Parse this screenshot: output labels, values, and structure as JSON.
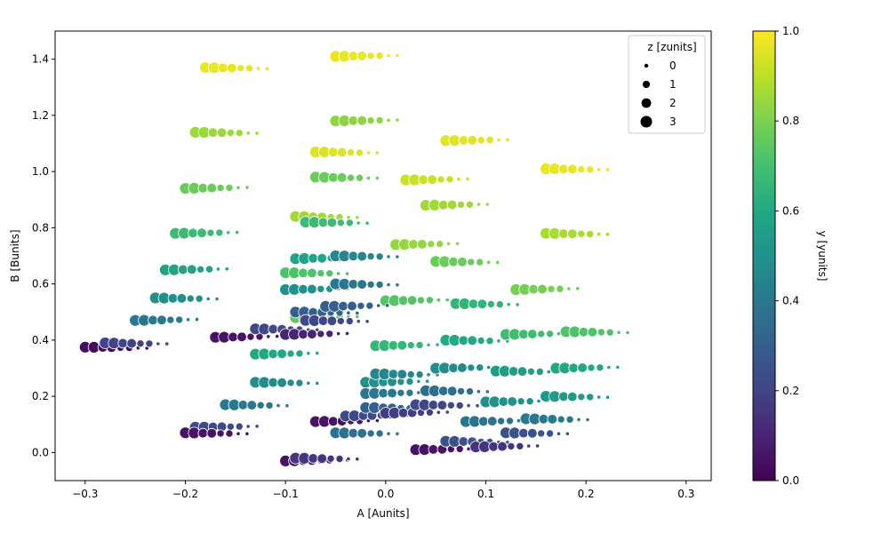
{
  "chart_data": {
    "type": "scatter",
    "xlabel": "A [Aunits]",
    "ylabel": "B [Bunits]",
    "colorbar_label": "y [yunits]",
    "legend_title": "z [zunits]",
    "legend_placement": "top-right",
    "xlim": [
      -0.33,
      0.325
    ],
    "ylim": [
      -0.1,
      1.5
    ],
    "x_ticks": [
      -0.3,
      -0.2,
      -0.1,
      0.0,
      0.1,
      0.2,
      0.3
    ],
    "x_tick_labels": [
      "−0.3",
      "−0.2",
      "−0.1",
      "0.0",
      "0.1",
      "0.2",
      "0.3"
    ],
    "y_ticks": [
      0.0,
      0.2,
      0.4,
      0.6,
      0.8,
      1.0,
      1.2,
      1.4
    ],
    "y_tick_labels": [
      "0.0",
      "0.2",
      "0.4",
      "0.6",
      "0.8",
      "1.0",
      "1.2",
      "1.4"
    ],
    "colorbar_range": [
      0.0,
      1.0
    ],
    "colorbar_ticks": [
      0.0,
      0.2,
      0.4,
      0.6,
      0.8,
      1.0
    ],
    "colorbar_tick_labels": [
      "0.0",
      "0.2",
      "0.4",
      "0.6",
      "0.8",
      "1.0"
    ],
    "colormap": "viridis",
    "grid": false,
    "legend_entries": [
      {
        "label": "0",
        "z": 0
      },
      {
        "label": "1",
        "z": 1
      },
      {
        "label": "2",
        "z": 2
      },
      {
        "label": "3",
        "z": 3
      }
    ],
    "clusters": [
      {
        "x": -0.3,
        "B": 0.375,
        "y": 0.03
      },
      {
        "x": -0.17,
        "B": 0.41,
        "y": 0.05
      },
      {
        "x": -0.18,
        "B": 1.37,
        "y": 0.97
      },
      {
        "x": -0.05,
        "B": 1.41,
        "y": 0.97
      },
      {
        "x": -0.19,
        "B": 1.14,
        "y": 0.85
      },
      {
        "x": -0.05,
        "B": 1.18,
        "y": 0.83
      },
      {
        "x": -0.07,
        "B": 1.07,
        "y": 0.95
      },
      {
        "x": 0.06,
        "B": 1.11,
        "y": 0.96
      },
      {
        "x": 0.16,
        "B": 1.01,
        "y": 0.97
      },
      {
        "x": -0.2,
        "B": 0.94,
        "y": 0.77
      },
      {
        "x": -0.07,
        "B": 0.98,
        "y": 0.77
      },
      {
        "x": 0.02,
        "B": 0.97,
        "y": 0.92
      },
      {
        "x": -0.09,
        "B": 0.84,
        "y": 0.86
      },
      {
        "x": 0.04,
        "B": 0.88,
        "y": 0.86
      },
      {
        "x": 0.16,
        "B": 0.78,
        "y": 0.87
      },
      {
        "x": -0.21,
        "B": 0.78,
        "y": 0.68
      },
      {
        "x": -0.08,
        "B": 0.82,
        "y": 0.68
      },
      {
        "x": 0.01,
        "B": 0.74,
        "y": 0.84
      },
      {
        "x": 0.05,
        "B": 0.68,
        "y": 0.77
      },
      {
        "x": -0.22,
        "B": 0.65,
        "y": 0.58
      },
      {
        "x": -0.1,
        "B": 0.64,
        "y": 0.72
      },
      {
        "x": -0.09,
        "B": 0.69,
        "y": 0.58
      },
      {
        "x": -0.05,
        "B": 0.7,
        "y": 0.45
      },
      {
        "x": 0.13,
        "B": 0.58,
        "y": 0.79
      },
      {
        "x": -0.23,
        "B": 0.55,
        "y": 0.49
      },
      {
        "x": -0.1,
        "B": 0.58,
        "y": 0.5
      },
      {
        "x": -0.05,
        "B": 0.6,
        "y": 0.4
      },
      {
        "x": -0.09,
        "B": 0.48,
        "y": 0.75
      },
      {
        "x": -0.09,
        "B": 0.5,
        "y": 0.3
      },
      {
        "x": 0.0,
        "B": 0.54,
        "y": 0.73
      },
      {
        "x": 0.07,
        "B": 0.53,
        "y": 0.65
      },
      {
        "x": -0.25,
        "B": 0.47,
        "y": 0.4
      },
      {
        "x": -0.13,
        "B": 0.44,
        "y": 0.22
      },
      {
        "x": -0.1,
        "B": 0.42,
        "y": 0.1
      },
      {
        "x": -0.08,
        "B": 0.47,
        "y": 0.21
      },
      {
        "x": -0.06,
        "B": 0.52,
        "y": 0.3
      },
      {
        "x": -0.28,
        "B": 0.39,
        "y": 0.2
      },
      {
        "x": -0.01,
        "B": 0.38,
        "y": 0.66
      },
      {
        "x": 0.06,
        "B": 0.4,
        "y": 0.6
      },
      {
        "x": 0.12,
        "B": 0.42,
        "y": 0.69
      },
      {
        "x": 0.18,
        "B": 0.43,
        "y": 0.72
      },
      {
        "x": -0.13,
        "B": 0.35,
        "y": 0.6
      },
      {
        "x": -0.13,
        "B": 0.25,
        "y": 0.48
      },
      {
        "x": -0.02,
        "B": 0.25,
        "y": 0.5
      },
      {
        "x": -0.01,
        "B": 0.28,
        "y": 0.45
      },
      {
        "x": 0.05,
        "B": 0.3,
        "y": 0.48
      },
      {
        "x": 0.11,
        "B": 0.29,
        "y": 0.55
      },
      {
        "x": 0.17,
        "B": 0.3,
        "y": 0.6
      },
      {
        "x": -0.16,
        "B": 0.17,
        "y": 0.4
      },
      {
        "x": -0.02,
        "B": 0.21,
        "y": 0.4
      },
      {
        "x": 0.04,
        "B": 0.22,
        "y": 0.36
      },
      {
        "x": 0.1,
        "B": 0.18,
        "y": 0.5
      },
      {
        "x": 0.16,
        "B": 0.2,
        "y": 0.54
      },
      {
        "x": -0.19,
        "B": 0.09,
        "y": 0.22
      },
      {
        "x": -0.2,
        "B": 0.07,
        "y": 0.05
      },
      {
        "x": -0.07,
        "B": 0.11,
        "y": 0.05
      },
      {
        "x": -0.05,
        "B": 0.07,
        "y": 0.37
      },
      {
        "x": -0.04,
        "B": 0.13,
        "y": 0.23
      },
      {
        "x": -0.02,
        "B": 0.16,
        "y": 0.3
      },
      {
        "x": 0.0,
        "B": 0.14,
        "y": 0.18
      },
      {
        "x": 0.03,
        "B": 0.17,
        "y": 0.22
      },
      {
        "x": 0.08,
        "B": 0.11,
        "y": 0.38
      },
      {
        "x": 0.14,
        "B": 0.12,
        "y": 0.4
      },
      {
        "x": -0.1,
        "B": -0.03,
        "y": 0.05
      },
      {
        "x": -0.09,
        "B": -0.02,
        "y": 0.15
      },
      {
        "x": 0.03,
        "B": 0.01,
        "y": 0.05
      },
      {
        "x": 0.06,
        "B": 0.04,
        "y": 0.26
      },
      {
        "x": 0.09,
        "B": 0.02,
        "y": 0.15
      },
      {
        "x": 0.12,
        "B": 0.07,
        "y": 0.25
      }
    ]
  }
}
